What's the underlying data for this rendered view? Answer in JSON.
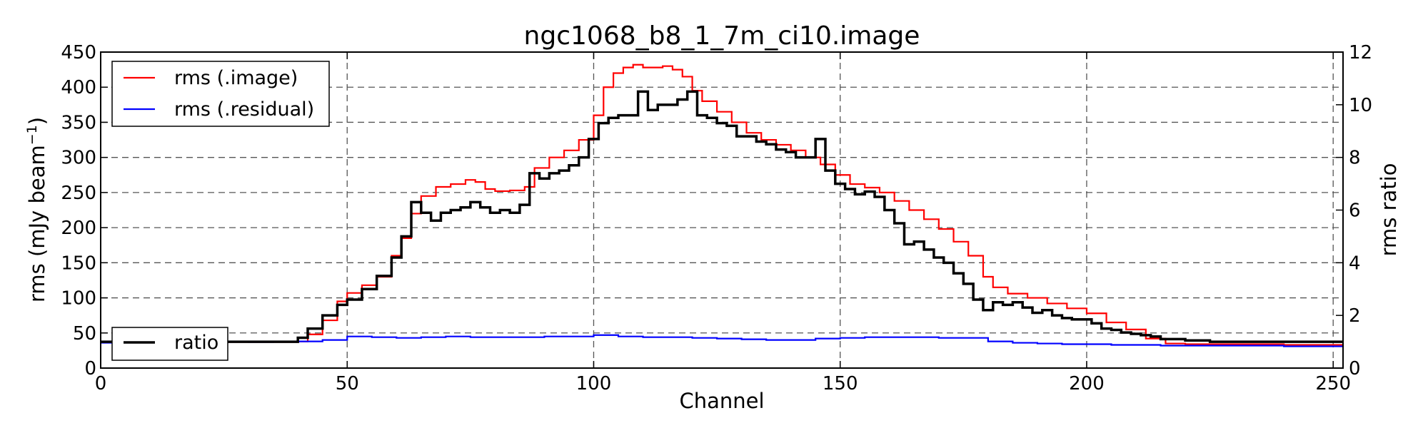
{
  "chart_data": {
    "type": "line",
    "title": "ngc1068_b8_1_7m_ci10.image",
    "xlabel": "Channel",
    "ylabel": "rms (mJy beam",
    "ylabel_sup": "−1",
    "ylabel_close": ")",
    "y2label": "rms ratio",
    "xlim": [
      0,
      252
    ],
    "ylim": [
      0,
      450
    ],
    "y2lim": [
      0,
      12
    ],
    "xticks": [
      0,
      50,
      100,
      150,
      200,
      250
    ],
    "yticks": [
      0,
      50,
      100,
      150,
      200,
      250,
      300,
      350,
      400,
      450
    ],
    "y2ticks": [
      0,
      2,
      4,
      6,
      8,
      10,
      12
    ],
    "grid": true,
    "step": true,
    "legend_primary": {
      "placement": "upper-left",
      "entries": [
        {
          "label": "rms (.image)",
          "color": "#ff0000"
        },
        {
          "label": "rms (.residual)",
          "color": "#0000ff"
        }
      ]
    },
    "legend_secondary": {
      "placement": "lower-left",
      "entries": [
        {
          "label": "ratio",
          "color": "#000000"
        }
      ]
    },
    "series": [
      {
        "name": "rms (.image)",
        "axis": "left",
        "color": "#ff0000",
        "points": [
          [
            0,
            37
          ],
          [
            20,
            37
          ],
          [
            40,
            38
          ],
          [
            42,
            48
          ],
          [
            45,
            68
          ],
          [
            48,
            95
          ],
          [
            50,
            107
          ],
          [
            53,
            118
          ],
          [
            56,
            130
          ],
          [
            59,
            160
          ],
          [
            61,
            185
          ],
          [
            63,
            220
          ],
          [
            65,
            245
          ],
          [
            68,
            258
          ],
          [
            71,
            262
          ],
          [
            74,
            268
          ],
          [
            76,
            265
          ],
          [
            78,
            255
          ],
          [
            80,
            252
          ],
          [
            83,
            253
          ],
          [
            86,
            258
          ],
          [
            88,
            285
          ],
          [
            91,
            300
          ],
          [
            94,
            310
          ],
          [
            97,
            325
          ],
          [
            100,
            360
          ],
          [
            102,
            400
          ],
          [
            104,
            420
          ],
          [
            106,
            428
          ],
          [
            108,
            432
          ],
          [
            110,
            428
          ],
          [
            112,
            428
          ],
          [
            114,
            430
          ],
          [
            116,
            425
          ],
          [
            118,
            415
          ],
          [
            120,
            395
          ],
          [
            122,
            380
          ],
          [
            125,
            365
          ],
          [
            128,
            350
          ],
          [
            131,
            335
          ],
          [
            134,
            325
          ],
          [
            137,
            318
          ],
          [
            140,
            310
          ],
          [
            143,
            300
          ],
          [
            146,
            290
          ],
          [
            149,
            275
          ],
          [
            152,
            262
          ],
          [
            155,
            257
          ],
          [
            158,
            250
          ],
          [
            161,
            238
          ],
          [
            164,
            225
          ],
          [
            167,
            212
          ],
          [
            170,
            198
          ],
          [
            173,
            180
          ],
          [
            176,
            160
          ],
          [
            179,
            130
          ],
          [
            181,
            115
          ],
          [
            184,
            106
          ],
          [
            188,
            100
          ],
          [
            192,
            92
          ],
          [
            196,
            85
          ],
          [
            200,
            78
          ],
          [
            204,
            65
          ],
          [
            208,
            55
          ],
          [
            212,
            42
          ],
          [
            216,
            35
          ],
          [
            220,
            34
          ],
          [
            225,
            34
          ],
          [
            230,
            34
          ],
          [
            240,
            33
          ],
          [
            252,
            33
          ]
        ]
      },
      {
        "name": "rms (.residual)",
        "axis": "left",
        "color": "#0000ff",
        "points": [
          [
            0,
            36
          ],
          [
            10,
            37
          ],
          [
            20,
            38
          ],
          [
            25,
            38
          ],
          [
            30,
            37
          ],
          [
            35,
            38
          ],
          [
            40,
            38
          ],
          [
            45,
            40
          ],
          [
            50,
            45
          ],
          [
            55,
            44
          ],
          [
            60,
            43
          ],
          [
            65,
            44
          ],
          [
            70,
            45
          ],
          [
            75,
            44
          ],
          [
            80,
            44
          ],
          [
            85,
            44
          ],
          [
            90,
            45
          ],
          [
            95,
            45
          ],
          [
            100,
            47
          ],
          [
            105,
            45
          ],
          [
            110,
            44
          ],
          [
            115,
            44
          ],
          [
            120,
            43
          ],
          [
            125,
            42
          ],
          [
            130,
            41
          ],
          [
            135,
            40
          ],
          [
            140,
            40
          ],
          [
            145,
            42
          ],
          [
            150,
            43
          ],
          [
            155,
            44
          ],
          [
            160,
            44
          ],
          [
            165,
            44
          ],
          [
            170,
            43
          ],
          [
            175,
            43
          ],
          [
            180,
            38
          ],
          [
            185,
            36
          ],
          [
            190,
            35
          ],
          [
            195,
            34
          ],
          [
            200,
            34
          ],
          [
            205,
            33
          ],
          [
            210,
            33
          ],
          [
            215,
            32
          ],
          [
            220,
            32
          ],
          [
            230,
            32
          ],
          [
            240,
            31
          ],
          [
            252,
            30
          ]
        ]
      },
      {
        "name": "ratio",
        "axis": "right",
        "color": "#000000",
        "points": [
          [
            0,
            1.0
          ],
          [
            20,
            1.0
          ],
          [
            38,
            1.0
          ],
          [
            40,
            1.15
          ],
          [
            42,
            1.5
          ],
          [
            45,
            2.0
          ],
          [
            48,
            2.4
          ],
          [
            50,
            2.6
          ],
          [
            53,
            3.0
          ],
          [
            56,
            3.5
          ],
          [
            59,
            4.2
          ],
          [
            61,
            5.0
          ],
          [
            63,
            6.3
          ],
          [
            65,
            5.9
          ],
          [
            67,
            5.6
          ],
          [
            69,
            5.9
          ],
          [
            71,
            6.0
          ],
          [
            73,
            6.1
          ],
          [
            75,
            6.3
          ],
          [
            77,
            6.1
          ],
          [
            79,
            5.9
          ],
          [
            81,
            6.0
          ],
          [
            83,
            5.9
          ],
          [
            85,
            6.2
          ],
          [
            87,
            7.4
          ],
          [
            89,
            7.2
          ],
          [
            91,
            7.4
          ],
          [
            93,
            7.5
          ],
          [
            95,
            7.7
          ],
          [
            97,
            8.0
          ],
          [
            99,
            8.7
          ],
          [
            101,
            9.3
          ],
          [
            103,
            9.5
          ],
          [
            105,
            9.6
          ],
          [
            107,
            9.6
          ],
          [
            109,
            10.5
          ],
          [
            111,
            9.8
          ],
          [
            113,
            10.0
          ],
          [
            115,
            10.0
          ],
          [
            117,
            10.2
          ],
          [
            119,
            10.5
          ],
          [
            121,
            9.6
          ],
          [
            123,
            9.5
          ],
          [
            125,
            9.3
          ],
          [
            127,
            9.2
          ],
          [
            129,
            8.8
          ],
          [
            131,
            8.8
          ],
          [
            133,
            8.6
          ],
          [
            135,
            8.5
          ],
          [
            137,
            8.3
          ],
          [
            139,
            8.2
          ],
          [
            141,
            8.0
          ],
          [
            143,
            8.0
          ],
          [
            145,
            8.7
          ],
          [
            147,
            7.5
          ],
          [
            149,
            7.0
          ],
          [
            151,
            6.8
          ],
          [
            153,
            6.6
          ],
          [
            155,
            6.7
          ],
          [
            157,
            6.5
          ],
          [
            159,
            6.0
          ],
          [
            161,
            5.5
          ],
          [
            163,
            4.7
          ],
          [
            165,
            4.8
          ],
          [
            167,
            4.5
          ],
          [
            169,
            4.2
          ],
          [
            171,
            4.0
          ],
          [
            173,
            3.6
          ],
          [
            175,
            3.2
          ],
          [
            177,
            2.6
          ],
          [
            179,
            2.2
          ],
          [
            181,
            2.5
          ],
          [
            183,
            2.4
          ],
          [
            185,
            2.5
          ],
          [
            187,
            2.3
          ],
          [
            189,
            2.1
          ],
          [
            191,
            2.2
          ],
          [
            193,
            2.0
          ],
          [
            195,
            1.9
          ],
          [
            197,
            1.85
          ],
          [
            199,
            1.85
          ],
          [
            201,
            1.7
          ],
          [
            203,
            1.5
          ],
          [
            205,
            1.45
          ],
          [
            207,
            1.35
          ],
          [
            209,
            1.3
          ],
          [
            211,
            1.25
          ],
          [
            213,
            1.2
          ],
          [
            215,
            1.1
          ],
          [
            217,
            1.1
          ],
          [
            220,
            1.05
          ],
          [
            225,
            1.0
          ],
          [
            235,
            1.0
          ],
          [
            252,
            1.0
          ]
        ]
      }
    ]
  }
}
